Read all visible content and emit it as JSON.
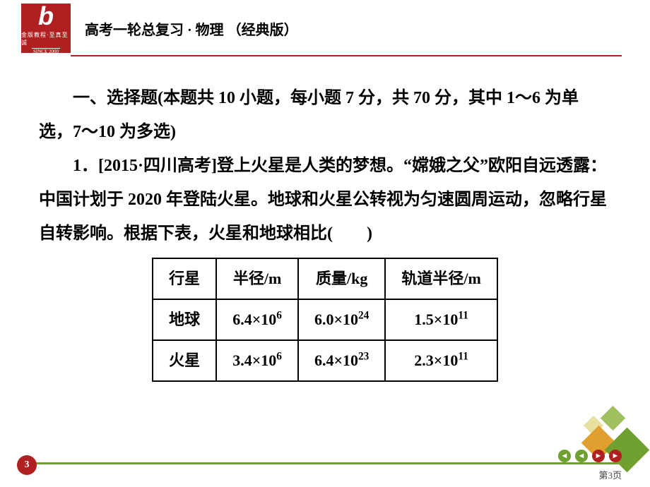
{
  "logo": {
    "main": "b",
    "sub1": "金版教程·至真至诚",
    "sub2": "SINCE 2000"
  },
  "header_title": "高考一轮总复习 · 物理 （经典版）",
  "section": {
    "heading": "一、选择题(本题共 10 小题，每小题 7 分，共 70 分，其中 1～6 为单选，7～10 为多选)",
    "q1_prefix": "1．[2015·四川高考]",
    "q1_body": "登上火星是人类的梦想。“嫦娥之父”欧阳自远透露：中国计划于 2020 年登陆火星。地球和火星公转视为匀速圆周运动，忽略行星自转影响。根据下表，火星和地球相比(　　)"
  },
  "table": {
    "columns": [
      "行星",
      "半径/m",
      "质量/kg",
      "轨道半径/m"
    ],
    "rows": [
      {
        "planet": "地球",
        "radius_coef": "6.4",
        "radius_exp": "6",
        "mass_coef": "6.0",
        "mass_exp": "24",
        "orbit_coef": "1.5",
        "orbit_exp": "11"
      },
      {
        "planet": "火星",
        "radius_coef": "3.4",
        "radius_exp": "6",
        "mass_coef": "6.4",
        "mass_exp": "23",
        "orbit_coef": "2.3",
        "orbit_exp": "11"
      }
    ]
  },
  "footer": {
    "badge": "3",
    "page_label": "第3页"
  },
  "colors": {
    "brand_red": "#b02020",
    "brand_green": "#6fa030",
    "brand_yellow": "#e0a030"
  }
}
